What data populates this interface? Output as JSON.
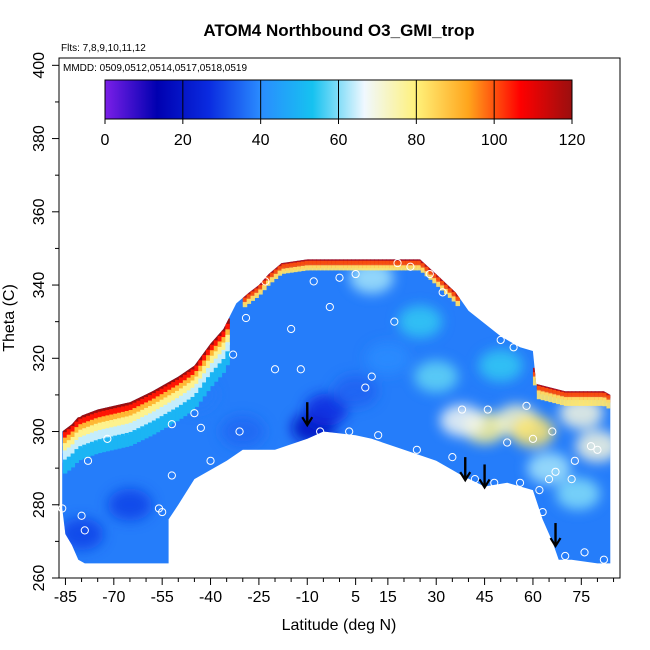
{
  "chart_data": {
    "type": "heatmap",
    "title": "ATOM4 Northbound O3_GMI_trop",
    "subtitle_flights": "Flts: 7,8,9,10,11,12",
    "subtitle_dates": "MMDD: 0509,0512,0514,0517,0518,0519",
    "xlabel": "Latitude (deg N)",
    "ylabel": "Theta (C)",
    "xlim": [
      -87,
      87
    ],
    "ylim": [
      260,
      402
    ],
    "x_ticks": [
      -85,
      -70,
      -55,
      -40,
      -25,
      -10,
      5,
      15,
      30,
      45,
      60,
      75
    ],
    "y_ticks": [
      260,
      280,
      300,
      320,
      340,
      360,
      380,
      400
    ],
    "colorbar": {
      "min": 0,
      "max": 120,
      "ticks": [
        0,
        20,
        40,
        60,
        80,
        100,
        120
      ],
      "colors": [
        "#7b1fe8",
        "#0000b0",
        "#0a2be0",
        "#2a8cff",
        "#16c2f0",
        "#f0f8ff",
        "#fff17a",
        "#ffa51c",
        "#ff0000",
        "#9a0f0f"
      ]
    },
    "field": {
      "lower_boundary": [
        [
          -86,
          279
        ],
        [
          -85,
          272
        ],
        [
          -83,
          269
        ],
        [
          -81,
          265
        ],
        [
          -79,
          264
        ],
        [
          -65,
          264
        ],
        [
          -55,
          264
        ],
        [
          -53,
          264
        ],
        [
          -53,
          276
        ],
        [
          -50,
          280
        ],
        [
          -45,
          287
        ],
        [
          -35,
          292
        ],
        [
          -30,
          295
        ],
        [
          -20,
          295
        ],
        [
          -10,
          298
        ],
        [
          -5,
          300
        ],
        [
          5,
          299
        ],
        [
          10,
          298
        ],
        [
          20,
          295
        ],
        [
          30,
          292
        ],
        [
          38,
          288
        ],
        [
          45,
          285
        ],
        [
          52,
          286
        ],
        [
          60,
          284
        ],
        [
          63,
          276
        ],
        [
          66,
          270
        ],
        [
          68,
          265
        ],
        [
          72,
          265
        ],
        [
          80,
          264
        ],
        [
          84,
          264
        ],
        [
          84,
          310
        ]
      ],
      "top_boundary": [
        [
          84,
          310
        ],
        [
          82,
          311
        ],
        [
          70,
          311
        ],
        [
          61,
          313
        ],
        [
          60,
          322
        ],
        [
          56,
          323
        ],
        [
          50,
          326
        ],
        [
          40,
          333
        ],
        [
          36,
          338
        ],
        [
          30,
          343
        ],
        [
          25,
          347
        ],
        [
          -3,
          347
        ],
        [
          -10,
          347
        ],
        [
          -18,
          346
        ],
        [
          -22,
          343
        ],
        [
          -25,
          340
        ],
        [
          -28,
          338
        ],
        [
          -32,
          335
        ],
        [
          -36,
          328
        ],
        [
          -40,
          324
        ],
        [
          -45,
          318
        ],
        [
          -50,
          315
        ],
        [
          -58,
          311
        ],
        [
          -65,
          308
        ],
        [
          -75,
          306
        ],
        [
          -81,
          304
        ],
        [
          -83,
          302
        ],
        [
          -86,
          300
        ]
      ],
      "background_value": 38,
      "blobs": [
        {
          "lat": -8,
          "theta": 301,
          "value": 18
        },
        {
          "lat": -4,
          "theta": 306,
          "value": 26
        },
        {
          "lat": 5,
          "theta": 311,
          "value": 34
        },
        {
          "lat": 15,
          "theta": 320,
          "value": 40
        },
        {
          "lat": 25,
          "theta": 330,
          "value": 55
        },
        {
          "lat": 30,
          "theta": 315,
          "value": 58
        },
        {
          "lat": 45,
          "theta": 301,
          "value": 78
        },
        {
          "lat": 38,
          "theta": 303,
          "value": 68
        },
        {
          "lat": 50,
          "theta": 318,
          "value": 55
        },
        {
          "lat": 55,
          "theta": 303,
          "value": 72
        },
        {
          "lat": 60,
          "theta": 300,
          "value": 82
        },
        {
          "lat": 65,
          "theta": 290,
          "value": 62
        },
        {
          "lat": 74,
          "theta": 283,
          "value": 60
        },
        {
          "lat": 80,
          "theta": 296,
          "value": 70
        },
        {
          "lat": 75,
          "theta": 305,
          "value": 70
        },
        {
          "lat": 10,
          "theta": 342,
          "value": 62
        },
        {
          "lat": -65,
          "theta": 280,
          "value": 30
        },
        {
          "lat": -80,
          "theta": 272,
          "value": 30
        },
        {
          "lat": -30,
          "theta": 300,
          "value": 35
        },
        {
          "lat": -45,
          "theta": 310,
          "value": 38
        }
      ],
      "top_gradient_lat_range": [
        -87,
        -35
      ],
      "top_gradient": [
        [
          0,
          120
        ],
        [
          1.5,
          105
        ],
        [
          3,
          90
        ],
        [
          4.5,
          78
        ],
        [
          6.5,
          64
        ],
        [
          9,
          50
        ],
        [
          12,
          40
        ]
      ]
    },
    "sample_points": [
      [
        -86,
        279
      ],
      [
        -80,
        277
      ],
      [
        -79,
        273
      ],
      [
        -78,
        292
      ],
      [
        -83,
        310
      ],
      [
        -81,
        305
      ],
      [
        -72,
        298
      ],
      [
        -56,
        279
      ],
      [
        -55,
        278
      ],
      [
        -52,
        288
      ],
      [
        -52,
        302
      ],
      [
        -51,
        276
      ],
      [
        -48,
        280
      ],
      [
        -45,
        305
      ],
      [
        -43,
        301
      ],
      [
        -40,
        292
      ],
      [
        -33,
        321
      ],
      [
        -31,
        300
      ],
      [
        -29,
        331
      ],
      [
        -25,
        345
      ],
      [
        -23,
        341
      ],
      [
        -20,
        317
      ],
      [
        -15,
        328
      ],
      [
        -12,
        317
      ],
      [
        -8,
        341
      ],
      [
        -6,
        300
      ],
      [
        -3,
        334
      ],
      [
        0,
        342
      ],
      [
        3,
        300
      ],
      [
        5,
        343
      ],
      [
        8,
        312
      ],
      [
        10,
        315
      ],
      [
        12,
        299
      ],
      [
        17,
        330
      ],
      [
        18,
        346
      ],
      [
        22,
        345
      ],
      [
        24,
        295
      ],
      [
        28,
        343
      ],
      [
        32,
        338
      ],
      [
        35,
        293
      ],
      [
        38,
        306
      ],
      [
        42,
        287
      ],
      [
        46,
        306
      ],
      [
        48,
        286
      ],
      [
        50,
        325
      ],
      [
        52,
        297
      ],
      [
        54,
        323
      ],
      [
        56,
        286
      ],
      [
        58,
        307
      ],
      [
        60,
        298
      ],
      [
        62,
        284
      ],
      [
        63,
        278
      ],
      [
        65,
        287
      ],
      [
        66,
        300
      ],
      [
        67,
        289
      ],
      [
        70,
        266
      ],
      [
        72,
        287
      ],
      [
        73,
        292
      ],
      [
        76,
        267
      ],
      [
        78,
        296
      ],
      [
        80,
        295
      ],
      [
        82,
        265
      ]
    ],
    "arrows": [
      {
        "lat": -10,
        "theta": 302
      },
      {
        "lat": 39,
        "theta": 287
      },
      {
        "lat": 45,
        "theta": 285
      },
      {
        "lat": 67,
        "theta": 269
      }
    ]
  }
}
